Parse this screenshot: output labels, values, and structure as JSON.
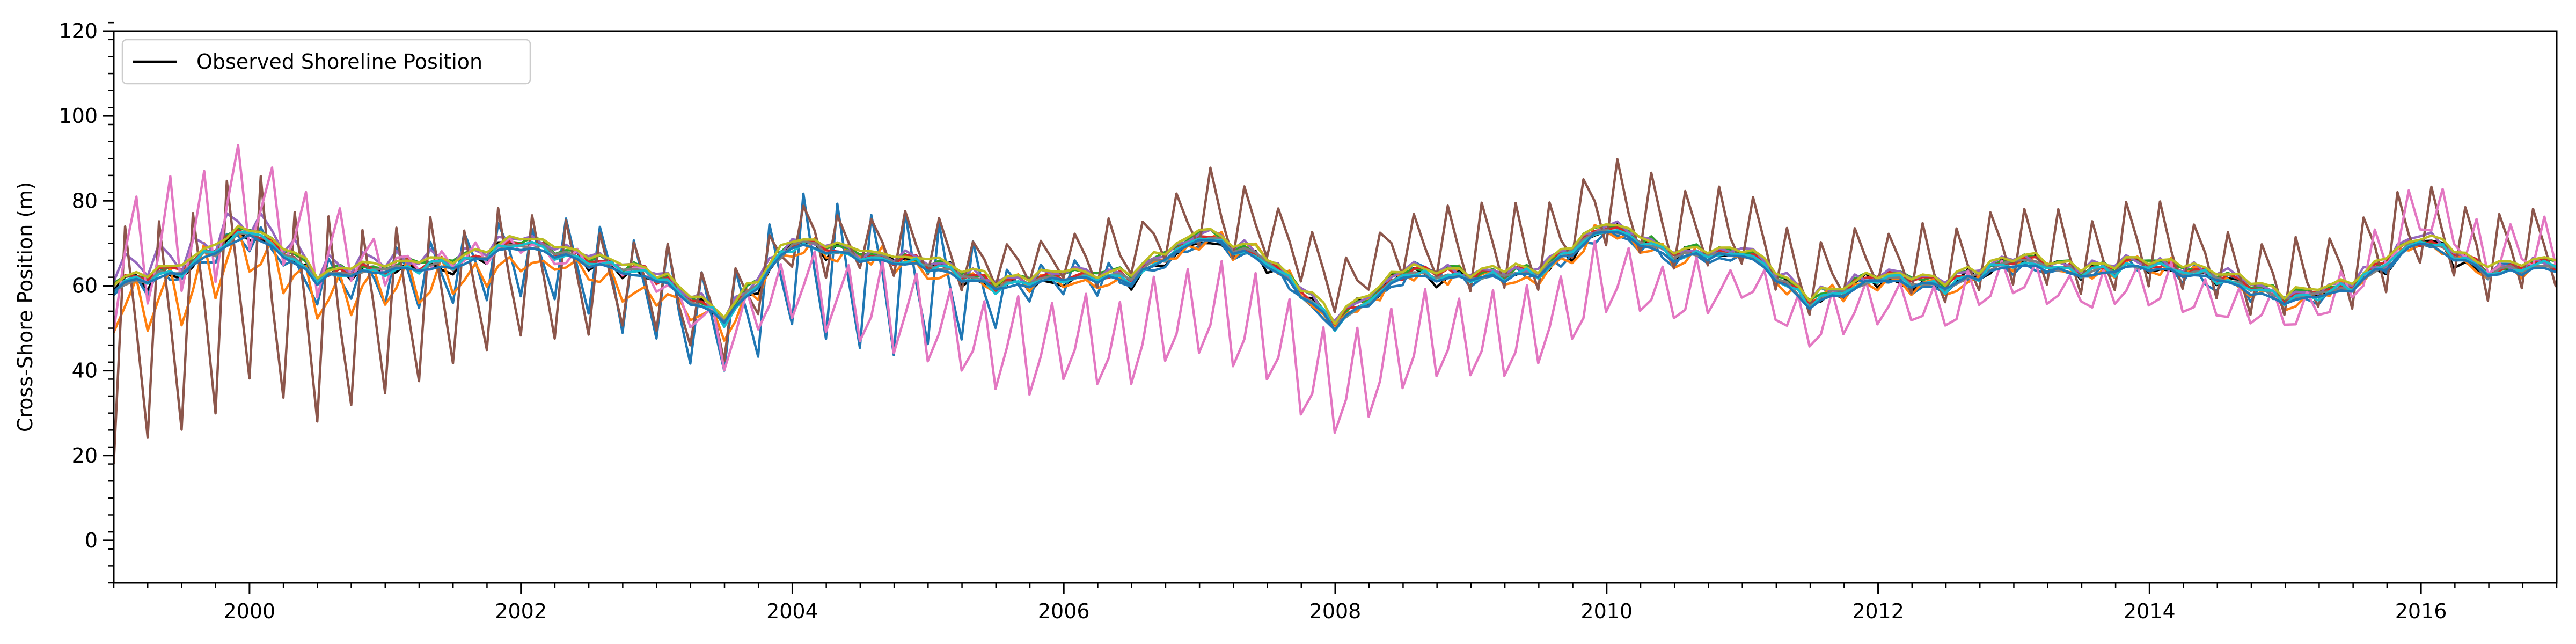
{
  "chart_data": {
    "type": "line",
    "title": "",
    "xlabel": "",
    "ylabel": "Cross-Shore Position (m)",
    "xlim": [
      1999.0,
      2017.0
    ],
    "ylim": [
      -10,
      120
    ],
    "x_ticks": [
      2000,
      2002,
      2004,
      2006,
      2008,
      2010,
      2012,
      2014,
      2016
    ],
    "x_tick_labels": [
      "2000",
      "2002",
      "2004",
      "2006",
      "2008",
      "2010",
      "2012",
      "2014",
      "2016"
    ],
    "y_ticks": [
      0,
      20,
      40,
      60,
      80,
      100,
      120
    ],
    "y_tick_labels": [
      "0",
      "20",
      "40",
      "60",
      "80",
      "100",
      "120"
    ],
    "grid": false,
    "legend": {
      "position": "top-left",
      "entries": [
        "Observed Shoreline Position"
      ]
    },
    "sampling": {
      "start": 1999.0,
      "end": 2017.0,
      "step": 0.0833,
      "note": "monthly samples"
    },
    "observed_trend": {
      "times": [
        1999.0,
        1999.5,
        2000.0,
        2000.5,
        2001.0,
        2001.5,
        2002.0,
        2002.5,
        2003.0,
        2003.5,
        2004.0,
        2004.5,
        2005.0,
        2005.5,
        2006.0,
        2006.5,
        2007.0,
        2007.5,
        2008.0,
        2008.5,
        2009.0,
        2009.5,
        2010.0,
        2010.5,
        2011.0,
        2011.5,
        2012.0,
        2012.5,
        2013.0,
        2013.5,
        2014.0,
        2014.5,
        2015.0,
        2015.5,
        2016.0,
        2016.5,
        2017.0
      ],
      "values": [
        60,
        64,
        73,
        62,
        64,
        65,
        70,
        66,
        62,
        52,
        70,
        67,
        65,
        60,
        62,
        62,
        72,
        66,
        51,
        63,
        62,
        63,
        74,
        67,
        68,
        56,
        62,
        60,
        66,
        63,
        65,
        62,
        57,
        60,
        71,
        63,
        65
      ]
    },
    "series": [
      {
        "name": "Observed Shoreline Position",
        "color": "#000000",
        "amp_pattern": [
          [
            1999.0,
            3
          ],
          [
            2017.0,
            3
          ]
        ],
        "skew": 0.5,
        "offset_pattern": [
          [
            1999.0,
            0
          ],
          [
            2017.0,
            0
          ]
        ],
        "noise": 1.6,
        "min": 40,
        "max": 82
      },
      {
        "color": "#1f77b4",
        "amp_pattern": [
          [
            1999.0,
            6
          ],
          [
            2000.0,
            6
          ],
          [
            2001.0,
            14
          ],
          [
            2002.5,
            26
          ],
          [
            2003.5,
            35
          ],
          [
            2004.3,
            42
          ],
          [
            2005.1,
            42
          ],
          [
            2005.7,
            12
          ],
          [
            2006.2,
            10
          ],
          [
            2007.0,
            3
          ],
          [
            2017.0,
            3
          ]
        ],
        "skew": 0.12,
        "offset_pattern": [
          [
            1999.0,
            0
          ],
          [
            2017.0,
            0
          ]
        ],
        "noise": 2,
        "min": 40,
        "max": 104
      },
      {
        "color": "#ff7f0e",
        "amp_pattern": [
          [
            1999.0,
            18
          ],
          [
            2001.0,
            14
          ],
          [
            2002.0,
            6
          ],
          [
            2003.2,
            8
          ],
          [
            2004.0,
            4
          ],
          [
            2017.0,
            3
          ]
        ],
        "skew": 0.85,
        "offset_pattern": [
          [
            1999.0,
            -3
          ],
          [
            2003.0,
            -3
          ],
          [
            2004.0,
            0
          ],
          [
            2017.0,
            0
          ]
        ],
        "noise": 2,
        "min": 38,
        "max": 82
      },
      {
        "color": "#2ca02c",
        "amp_pattern": [
          [
            1999.0,
            2
          ],
          [
            2017.0,
            2
          ]
        ],
        "skew": 0.5,
        "offset_pattern": [
          [
            1999.0,
            1
          ],
          [
            2017.0,
            1
          ]
        ],
        "noise": 1,
        "min": 42,
        "max": 80
      },
      {
        "color": "#d62728",
        "amp_pattern": [
          [
            1999.0,
            2.5
          ],
          [
            2017.0,
            2.5
          ]
        ],
        "skew": 0.5,
        "offset_pattern": [
          [
            1999.0,
            0.5
          ],
          [
            2017.0,
            0.5
          ]
        ],
        "noise": 1,
        "min": 42,
        "max": 80
      },
      {
        "color": "#9467bd",
        "amp_pattern": [
          [
            1999.0,
            8
          ],
          [
            2000.5,
            6
          ],
          [
            2002.0,
            2
          ],
          [
            2017.0,
            2
          ]
        ],
        "skew": 0.3,
        "offset_pattern": [
          [
            1999.0,
            4
          ],
          [
            2002.0,
            1
          ],
          [
            2017.0,
            1
          ]
        ],
        "noise": 1,
        "min": 40,
        "max": 95
      },
      {
        "color": "#8c564b",
        "amp_pattern": [
          [
            1999.0,
            68
          ],
          [
            2000.5,
            60
          ],
          [
            2001.5,
            42
          ],
          [
            2002.5,
            32
          ],
          [
            2003.5,
            22
          ],
          [
            2004.5,
            18
          ],
          [
            2006.0,
            14
          ],
          [
            2007.0,
            22
          ],
          [
            2008.0,
            18
          ],
          [
            2010.0,
            26
          ],
          [
            2012.0,
            18
          ],
          [
            2013.0,
            26
          ],
          [
            2015.0,
            22
          ],
          [
            2016.0,
            26
          ],
          [
            2017.0,
            22
          ]
        ],
        "skew": 0.15,
        "offset_pattern": [
          [
            1999.0,
            -6
          ],
          [
            2001.0,
            -4
          ],
          [
            2003.0,
            0
          ],
          [
            2004.0,
            4
          ],
          [
            2008.0,
            10
          ],
          [
            2010.0,
            8
          ],
          [
            2012.0,
            6
          ],
          [
            2017.0,
            6
          ]
        ],
        "noise": 2,
        "min": -12,
        "max": 100
      },
      {
        "color": "#e377c2",
        "amp_pattern": [
          [
            1999.0,
            42
          ],
          [
            2000.5,
            32
          ],
          [
            2001.0,
            10
          ],
          [
            2002.0,
            6
          ],
          [
            2003.0,
            8
          ],
          [
            2004.0,
            26
          ],
          [
            2005.0,
            36
          ],
          [
            2006.0,
            38
          ],
          [
            2008.0,
            42
          ],
          [
            2009.0,
            36
          ],
          [
            2010.0,
            36
          ],
          [
            2011.0,
            18
          ],
          [
            2012.0,
            24
          ],
          [
            2014.0,
            20
          ],
          [
            2015.0,
            18
          ],
          [
            2016.0,
            34
          ],
          [
            2017.0,
            28
          ]
        ],
        "skew": 0.92,
        "offset_pattern": [
          [
            1999.0,
            12
          ],
          [
            2000.5,
            12
          ],
          [
            2001.0,
            2
          ],
          [
            2003.0,
            0
          ],
          [
            2004.0,
            -6
          ],
          [
            2005.0,
            -10
          ],
          [
            2006.0,
            -12
          ],
          [
            2008.0,
            -14
          ],
          [
            2010.0,
            -10
          ],
          [
            2011.0,
            -6
          ],
          [
            2012.0,
            -4
          ],
          [
            2015.0,
            -4
          ],
          [
            2016.0,
            8
          ],
          [
            2017.0,
            4
          ]
        ],
        "noise": 2,
        "min": 14,
        "max": 114
      },
      {
        "color": "#7f7f7f",
        "amp_pattern": [
          [
            1999.0,
            1.5
          ],
          [
            2017.0,
            1.5
          ]
        ],
        "skew": 0.5,
        "offset_pattern": [
          [
            1999.0,
            0
          ],
          [
            2017.0,
            0
          ]
        ],
        "noise": 0.8,
        "min": 42,
        "max": 80
      },
      {
        "color": "#bcbd22",
        "amp_pattern": [
          [
            1999.0,
            2
          ],
          [
            2017.0,
            2
          ]
        ],
        "skew": 0.5,
        "offset_pattern": [
          [
            1999.0,
            1.5
          ],
          [
            2017.0,
            1.5
          ]
        ],
        "noise": 0.8,
        "min": 42,
        "max": 80
      },
      {
        "color": "#17becf",
        "amp_pattern": [
          [
            1999.0,
            2.5
          ],
          [
            2017.0,
            2.5
          ]
        ],
        "skew": 0.5,
        "offset_pattern": [
          [
            1999.0,
            0
          ],
          [
            2017.0,
            0
          ]
        ],
        "noise": 0.8,
        "min": 42,
        "max": 80
      },
      {
        "color": "#1f77b4",
        "amp_pattern": [
          [
            1999.0,
            1.5
          ],
          [
            2017.0,
            1.5
          ]
        ],
        "skew": 0.5,
        "offset_pattern": [
          [
            1999.0,
            -0.5
          ],
          [
            2017.0,
            -0.5
          ]
        ],
        "noise": 0.6,
        "min": 42,
        "max": 80
      }
    ]
  }
}
